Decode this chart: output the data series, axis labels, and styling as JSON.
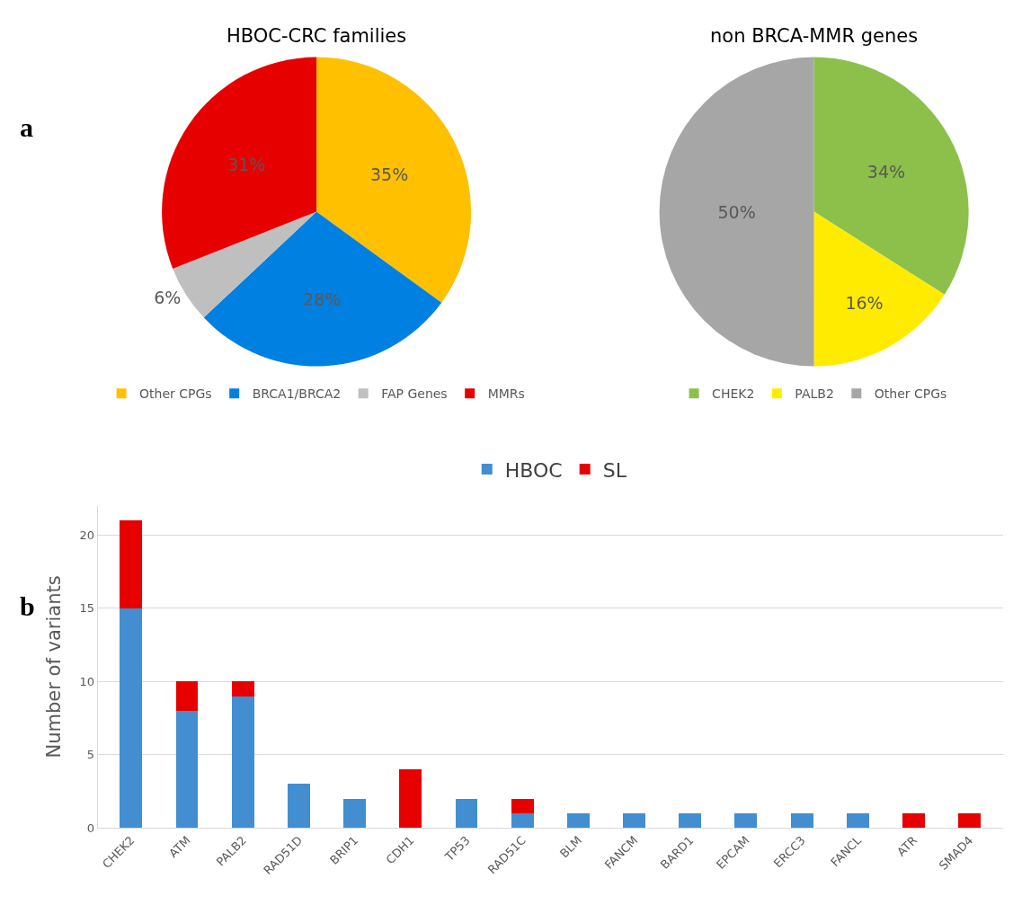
{
  "chart_data": [
    {
      "type": "pie",
      "title": "HBOC-CRC families",
      "categories": [
        "Other CPGs",
        "BRCA1/BRCA2",
        "FAP Genes",
        "MMRs"
      ],
      "values": [
        35,
        28,
        6,
        31
      ],
      "colors": [
        "#ffc000",
        "#0080e0",
        "#bfbfbf",
        "#e60000"
      ],
      "value_labels": [
        "35%",
        "28%",
        "6%",
        "31%"
      ],
      "legend": "bottom",
      "annotations": [
        "a"
      ]
    },
    {
      "type": "pie",
      "title": "non BRCA-MMR genes",
      "categories": [
        "CHEK2",
        "PALB2",
        "Other CPGs"
      ],
      "values": [
        34,
        16,
        50
      ],
      "colors": [
        "#8cc04b",
        "#ffeb00",
        "#a6a6a6"
      ],
      "value_labels": [
        "34%",
        "16%",
        "50%"
      ],
      "legend": "bottom"
    },
    {
      "type": "bar",
      "stacked": true,
      "ylabel": "Number of variants",
      "categories": [
        "CHEK2",
        "ATM",
        "PALB2",
        "RAD51D",
        "BRIP1",
        "CDH1",
        "TP53",
        "RAD51C",
        "BLM",
        "FANCM",
        "BARD1",
        "EPCAM",
        "ERCC3",
        "FANCL",
        "ATR",
        "SMAD4"
      ],
      "series": [
        {
          "name": "HBOC",
          "color": "#428ed0",
          "values": [
            15,
            8,
            9,
            3,
            2,
            0,
            2,
            1,
            1,
            1,
            1,
            1,
            1,
            1,
            0,
            0
          ]
        },
        {
          "name": "SL",
          "color": "#e60000",
          "values": [
            6,
            2,
            1,
            0,
            0,
            4,
            0,
            1,
            0,
            0,
            0,
            0,
            0,
            0,
            1,
            1
          ]
        }
      ],
      "ylim": [
        0,
        22
      ],
      "yticks": [
        0,
        5,
        10,
        15,
        20
      ],
      "grid": "y",
      "legend": "top",
      "annotations": [
        "b"
      ]
    }
  ]
}
